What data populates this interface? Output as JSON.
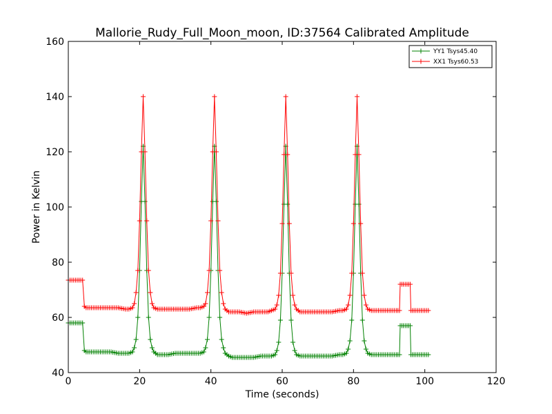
{
  "chart_data": {
    "type": "line",
    "title": "Mallorie_Rudy_Full_Moon_moon, ID:37564 Calibrated Amplitude",
    "xlabel": "Time (seconds)",
    "ylabel": "Power in Kelvin",
    "xlim": [
      0,
      120
    ],
    "ylim": [
      40,
      160
    ],
    "xticks": [
      "0",
      "20",
      "40",
      "60",
      "80",
      "100",
      "120"
    ],
    "yticks": [
      "40",
      "60",
      "80",
      "100",
      "120",
      "140",
      "160"
    ],
    "grid": false,
    "legend_position": "top-right",
    "series": [
      {
        "name": "YY1 Tsys45.40",
        "color": "#008000",
        "marker": "plus",
        "x": [
          0,
          1,
          2,
          3,
          4,
          4.5,
          5,
          6,
          8,
          10,
          12,
          14,
          16,
          17,
          18,
          18.5,
          19,
          19.5,
          20,
          20.5,
          21,
          21.5,
          22,
          22.5,
          23,
          23.5,
          24,
          25,
          26,
          28,
          30,
          32,
          34,
          36,
          37,
          38,
          38.5,
          39,
          39.5,
          40,
          40.5,
          41,
          41.5,
          42,
          42.5,
          43,
          43.5,
          44,
          45,
          46,
          48,
          50,
          52,
          54,
          56,
          57,
          58,
          58.5,
          59,
          59.5,
          60,
          60.5,
          61,
          61.5,
          62,
          62.5,
          63,
          63.5,
          64,
          65,
          66,
          68,
          70,
          72,
          74,
          76,
          77,
          78,
          78.5,
          79,
          79.5,
          80,
          80.5,
          81,
          81.5,
          82,
          82.5,
          83,
          83.5,
          84,
          85,
          86,
          88,
          90,
          92,
          92.9,
          93.1,
          94,
          95,
          95.9,
          96.1,
          97,
          98,
          99,
          100,
          101
        ],
        "y": [
          58,
          58,
          58,
          58,
          58,
          48,
          47.5,
          47.5,
          47.5,
          47.5,
          47.5,
          47,
          47,
          47,
          47.5,
          49,
          52,
          60,
          77,
          102,
          122,
          102,
          77,
          60,
          52,
          49,
          47.5,
          46.5,
          46.5,
          46.5,
          47,
          47,
          47,
          47,
          47,
          47.5,
          49,
          52,
          60,
          77,
          102,
          122,
          102,
          77,
          60,
          52,
          49,
          47,
          46,
          45.5,
          45.5,
          45.5,
          45.5,
          46,
          46,
          46,
          46.5,
          48,
          51,
          59,
          76,
          101,
          122,
          101,
          76,
          59,
          51,
          48,
          46.5,
          46,
          46,
          46,
          46,
          46,
          46,
          46.5,
          46.5,
          47,
          48.5,
          51.5,
          59,
          76,
          101,
          122,
          101,
          76,
          59,
          51.5,
          48.5,
          47,
          46.5,
          46.5,
          46.5,
          46.5,
          46.5,
          46.5,
          57,
          57,
          57,
          57,
          46.5,
          46.5,
          46.5,
          46.5,
          46.5,
          46.5
        ]
      },
      {
        "name": "XX1 Tsys60.53",
        "color": "#ff0000",
        "marker": "plus",
        "x": [
          0,
          1,
          2,
          3,
          4,
          4.5,
          5,
          6,
          8,
          10,
          12,
          14,
          16,
          17,
          18,
          18.5,
          19,
          19.5,
          20,
          20.5,
          21,
          21.5,
          22,
          22.5,
          23,
          23.5,
          24,
          25,
          26,
          28,
          30,
          32,
          34,
          36,
          37,
          38,
          38.5,
          39,
          39.5,
          40,
          40.5,
          41,
          41.5,
          42,
          42.5,
          43,
          43.5,
          44,
          45,
          46,
          48,
          50,
          52,
          54,
          56,
          57,
          58,
          58.5,
          59,
          59.5,
          60,
          60.5,
          61,
          61.5,
          62,
          62.5,
          63,
          63.5,
          64,
          65,
          66,
          68,
          70,
          72,
          74,
          76,
          77,
          78,
          78.5,
          79,
          79.5,
          80,
          80.5,
          81,
          81.5,
          82,
          82.5,
          83,
          83.5,
          84,
          85,
          86,
          88,
          90,
          92,
          92.9,
          93.1,
          94,
          95,
          95.9,
          96.1,
          97,
          98,
          99,
          100,
          101
        ],
        "y": [
          73.5,
          73.5,
          73.5,
          73.5,
          73.5,
          64,
          63.5,
          63.5,
          63.5,
          63.5,
          63.5,
          63.5,
          63,
          63,
          63.5,
          65,
          69,
          77,
          95,
          120,
          140,
          120,
          95,
          77,
          69,
          65,
          63.5,
          63,
          63,
          63,
          63,
          63,
          63,
          63.5,
          63.5,
          64,
          65,
          69,
          77,
          95,
          120,
          140,
          120,
          95,
          77,
          69,
          65,
          63,
          62,
          62,
          62,
          61.5,
          62,
          62,
          62,
          62.5,
          63,
          64.5,
          68,
          76,
          94,
          119,
          140,
          119,
          94,
          76,
          68,
          64.5,
          63,
          62,
          62,
          62,
          62,
          62,
          62,
          62.5,
          62.5,
          63,
          64.5,
          68,
          76,
          94,
          119,
          140,
          119,
          94,
          76,
          68,
          64.5,
          63,
          62.5,
          62.5,
          62.5,
          62.5,
          62.5,
          62.5,
          72,
          72,
          72,
          72,
          62.5,
          62.5,
          62.5,
          62.5,
          62.5,
          62.5
        ]
      }
    ]
  }
}
